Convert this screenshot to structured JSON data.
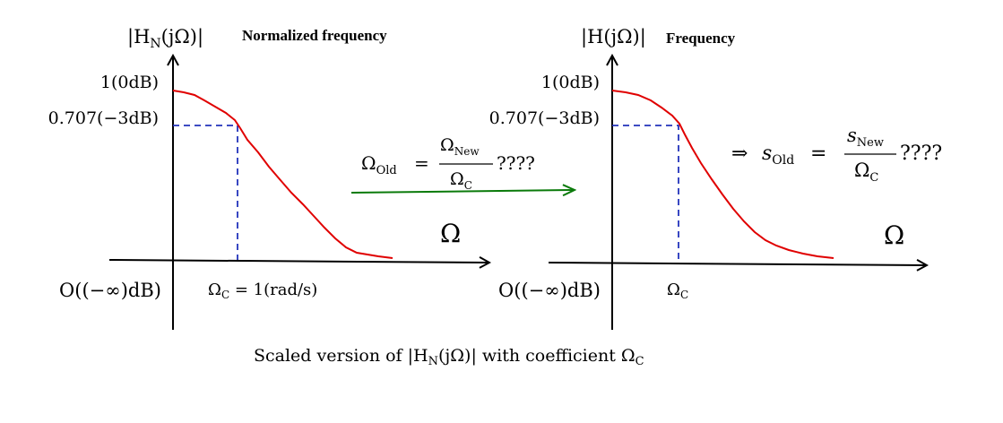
{
  "left_panel": {
    "ylabel_math": "|H",
    "ylabel_sub": "N",
    "ylabel_rest": "(jΩ)|",
    "ylabel_text": "Normalized frequency",
    "y_tick_top": "1(0dB)",
    "y_tick_mid": "0.707(−3dB)",
    "y_tick_bottom": "O((−∞)dB)",
    "x_axis_label": "Ω",
    "cutoff_label_main": "Ω",
    "cutoff_label_sub": "C",
    "cutoff_label_rest": " = 1(rad/s)"
  },
  "right_panel": {
    "ylabel_math": "|H(jΩ)|",
    "ylabel_text": "Frequency",
    "y_tick_top": "1(0dB)",
    "y_tick_mid": "0.707(−3dB)",
    "y_tick_bottom": "O((−∞)dB)",
    "x_axis_label": "Ω",
    "cutoff_label_main": "Ω",
    "cutoff_label_sub": "C"
  },
  "middle_formula": {
    "lhs_main": "Ω",
    "lhs_sub": "Old",
    "equals": "=",
    "num_main": "Ω",
    "num_sub": "New",
    "den_main": "Ω",
    "den_sub": "C",
    "suffix": "????"
  },
  "right_formula": {
    "implies": "⇒",
    "lhs_main": "s",
    "lhs_sub": "Old",
    "equals": "=",
    "num_main": "s",
    "num_sub": "New",
    "den_main": "Ω",
    "den_sub": "C",
    "suffix": "????"
  },
  "caption": {
    "prefix": "Scaled version of |H",
    "sub": "N",
    "middle": "(jΩ)| with coefficient Ω",
    "sub2": "C"
  },
  "colors": {
    "curve": "#e00000",
    "dashed": "#2233bb",
    "arrow": "#0a7a0a",
    "axis": "#000000"
  }
}
